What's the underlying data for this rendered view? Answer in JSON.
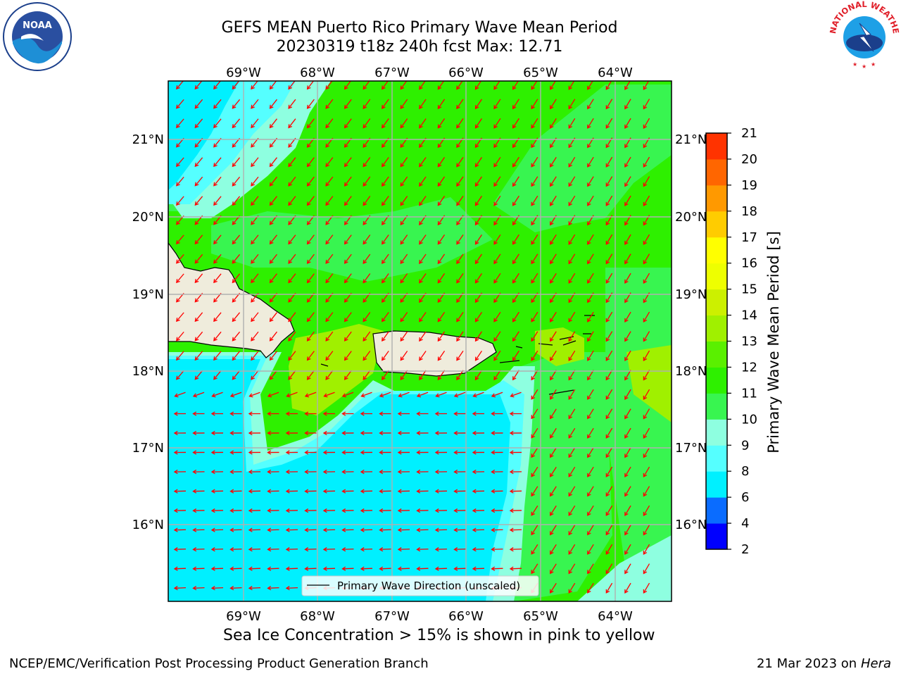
{
  "title_line1": "GEFS MEAN Puerto Rico Primary Wave Mean Period",
  "title_line2": "20230319 t18z 240h fcst   Max: 12.71",
  "lon_labels": [
    "69°W",
    "68°W",
    "67°W",
    "66°W",
    "65°W",
    "64°W"
  ],
  "lat_labels": [
    "21°N",
    "20°N",
    "19°N",
    "18°N",
    "17°N",
    "16°N"
  ],
  "legend_label": "Primary Wave Direction (unscaled)",
  "colorbar_label": "Primary Wave Mean Period [s]",
  "colorbar_ticks": [
    "2",
    "4",
    "6",
    "8",
    "9",
    "10",
    "11",
    "12",
    "13",
    "14",
    "15",
    "16",
    "17",
    "18",
    "19",
    "20",
    "21"
  ],
  "colorbar_colors": [
    "#0000ff",
    "#0a6cff",
    "#00f0ff",
    "#55ffff",
    "#8effe0",
    "#38f550",
    "#2ef000",
    "#5af000",
    "#a0f000",
    "#ccf000",
    "#eeff00",
    "#ffff00",
    "#ffcc00",
    "#ff9900",
    "#ff6600",
    "#ff3300",
    "#ff0000"
  ],
  "note": "Sea Ice Concentration > 15% is shown in pink to yellow",
  "footer_left": "NCEP/EMC/Verification Post Processing Product Generation Branch",
  "footer_date": "21 Mar 2023 on",
  "footer_host": "Hera",
  "logos": {
    "left": "NOAA",
    "right": "NATIONAL WEATHER SERVICE"
  },
  "arrow_color": "#ff0000",
  "land_color": "#efecdc"
}
